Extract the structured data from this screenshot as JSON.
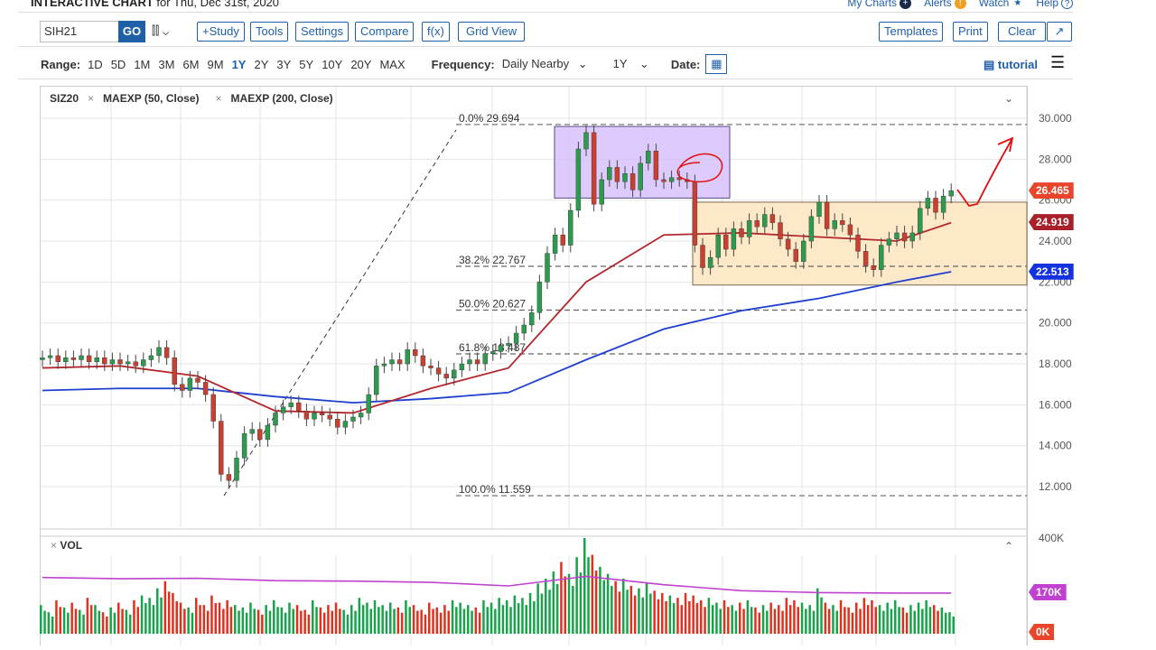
{
  "header": {
    "title_bold": "INTERACTIVE CHART",
    "title_rest": " for Thu, Dec 31st, 2020",
    "links": [
      "My Charts",
      "Alerts",
      "Watch",
      "Help"
    ]
  },
  "toolbar": {
    "symbol": "SIH21",
    "go": "GO",
    "buttons": [
      "+Study",
      "Tools",
      "Settings",
      "Compare",
      "f(x)",
      "Grid View"
    ],
    "right_buttons": [
      "Templates",
      "Print",
      "Clear"
    ]
  },
  "range": {
    "label": "Range:",
    "options": [
      "1D",
      "5D",
      "1M",
      "3M",
      "6M",
      "9M",
      "1Y",
      "2Y",
      "3Y",
      "5Y",
      "10Y",
      "20Y",
      "MAX"
    ],
    "selected": "1Y",
    "frequency_label": "Frequency:",
    "frequency": "Daily Nearby",
    "period": "1Y",
    "date_label": "Date:",
    "tutorial": "tutorial"
  },
  "legend": {
    "symbol": "SIZ20",
    "studies": [
      "MAEXP (50, Close)",
      "MAEXP (200, Close)"
    ],
    "vol": "VOL"
  },
  "colors": {
    "accent": "#1f5fa8",
    "up": "#2e9a4f",
    "down": "#c8402f",
    "ma50": "#b3282d",
    "ma200": "#1f3fcf",
    "volma": "#c040d0",
    "purple_box": "#d6c2fb",
    "orange_box": "#fde9c8",
    "annotation": "#e01010"
  },
  "chart_data": {
    "type": "candlestick",
    "ylim": [
      11,
      30.5
    ],
    "yticks": [
      "30.000",
      "28.000",
      "26.000",
      "24.000",
      "22.000",
      "20.000",
      "18.000",
      "16.000",
      "14.000",
      "12.000"
    ],
    "ytick_values": [
      30,
      28,
      26,
      24,
      22,
      20,
      18,
      16,
      14,
      12
    ],
    "closes": [
      18.3,
      18.4,
      18.1,
      18.3,
      18.2,
      18.4,
      18.1,
      18.3,
      18.0,
      18.2,
      18.0,
      18.1,
      17.9,
      18.2,
      18.4,
      18.8,
      18.3,
      17.0,
      16.7,
      17.3,
      17.1,
      16.5,
      15.2,
      12.6,
      12.3,
      13.4,
      14.6,
      14.8,
      14.3,
      15.0,
      15.6,
      15.9,
      16.1,
      15.7,
      15.3,
      15.6,
      15.5,
      15.3,
      14.9,
      15.2,
      15.4,
      15.6,
      16.5,
      17.9,
      18.0,
      18.2,
      18.0,
      18.7,
      18.4,
      17.9,
      17.8,
      17.5,
      17.3,
      17.7,
      18.0,
      18.2,
      18.0,
      18.5,
      18.6,
      18.9,
      19.0,
      19.5,
      19.9,
      20.5,
      22.0,
      23.4,
      24.3,
      23.8,
      25.5,
      28.5,
      29.3,
      25.8,
      27.0,
      27.6,
      26.9,
      27.3,
      26.5,
      27.8,
      28.4,
      27.0,
      26.9,
      27.1,
      27.0,
      26.9,
      23.8,
      22.7,
      23.2,
      24.3,
      23.6,
      24.6,
      24.2,
      25.0,
      24.7,
      25.3,
      24.9,
      24.1,
      23.6,
      23.0,
      24.0,
      25.2,
      25.9,
      24.6,
      25.0,
      24.8,
      24.3,
      23.5,
      22.8,
      22.6,
      23.8,
      24.1,
      24.4,
      24.0,
      24.4,
      25.6,
      26.1,
      25.4,
      26.2,
      26.465
    ],
    "ma50": [
      17.8,
      17.9,
      17.4,
      15.7,
      15.6,
      16.8,
      17.8,
      22.0,
      24.3,
      24.4,
      24.2,
      24.0,
      24.9
    ],
    "ma200": [
      16.7,
      16.8,
      16.8,
      16.4,
      16.1,
      16.3,
      16.6,
      18.2,
      19.7,
      20.6,
      21.2,
      22.0,
      22.5
    ],
    "fib_levels": [
      {
        "label": "0.0% 29.694",
        "value": 29.694
      },
      {
        "label": "38.2% 22.767",
        "value": 22.767
      },
      {
        "label": "50.0% 20.627",
        "value": 20.627
      },
      {
        "label": "61.8% 18.487",
        "value": 18.487
      },
      {
        "label": "100.0% 11.559",
        "value": 11.559
      }
    ],
    "purple_box": [
      29.6,
      26.1
    ],
    "orange_box": [
      25.9,
      21.85
    ],
    "price_tags": [
      {
        "label": "26.465",
        "color": "#e8452c"
      },
      {
        "label": "24.919",
        "color": "#a8202a"
      },
      {
        "label": "22.513",
        "color": "#1432e0"
      }
    ],
    "volume": [
      120,
      90,
      140,
      110,
      130,
      100,
      150,
      120,
      90,
      110,
      130,
      100,
      140,
      160,
      150,
      190,
      220,
      170,
      130,
      110,
      150,
      120,
      160,
      130,
      140,
      120,
      110,
      130,
      100,
      120,
      140,
      110,
      130,
      120,
      100,
      140,
      110,
      120,
      130,
      100,
      120,
      150,
      130,
      140,
      120,
      130,
      110,
      140,
      120,
      100,
      130,
      110,
      120,
      140,
      130,
      120,
      110,
      140,
      130,
      150,
      140,
      160,
      150,
      170,
      210,
      230,
      260,
      300,
      250,
      320,
      400,
      330,
      280,
      250,
      220,
      230,
      200,
      190,
      210,
      180,
      170,
      160,
      150,
      170,
      160,
      140,
      150,
      130,
      140,
      120,
      130,
      140,
      110,
      120,
      130,
      120,
      150,
      140,
      130,
      120,
      190,
      130,
      120,
      140,
      110,
      130,
      150,
      140,
      120,
      130,
      140,
      110,
      120,
      130,
      140,
      120,
      110,
      90
    ],
    "volma": [
      235,
      230,
      232,
      222,
      220,
      215,
      200,
      240,
      205,
      180,
      172,
      170,
      170
    ],
    "vol_axis": "400K",
    "vol_tags": [
      {
        "label": "170K",
        "color": "#c040d0"
      },
      {
        "label": "0K",
        "color": "#e8452c"
      }
    ]
  }
}
